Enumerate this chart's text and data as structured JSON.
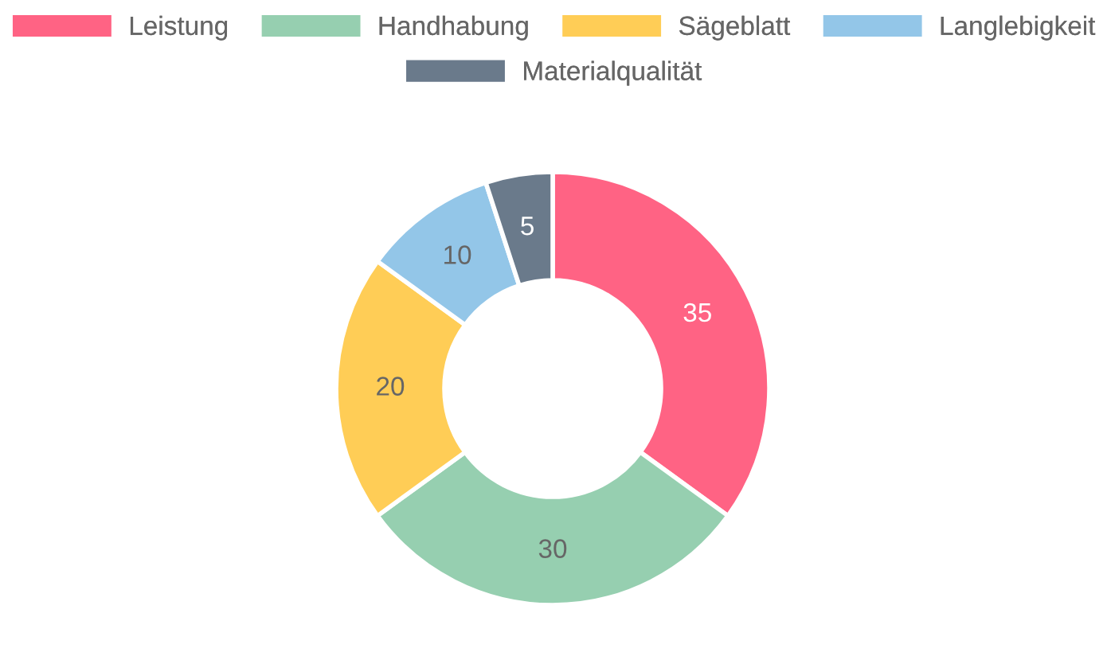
{
  "chart_data": {
    "type": "donut",
    "categories": [
      "Leistung",
      "Handhabung",
      "Sägeblatt",
      "Langlebigkeit",
      "Materialqualität"
    ],
    "values": [
      35,
      30,
      20,
      10,
      5
    ],
    "colors": [
      "#ff6384",
      "#96cfb0",
      "#ffcd56",
      "#93c6e8",
      "#6a7a8b"
    ],
    "data_labels": true,
    "legend": "top"
  }
}
